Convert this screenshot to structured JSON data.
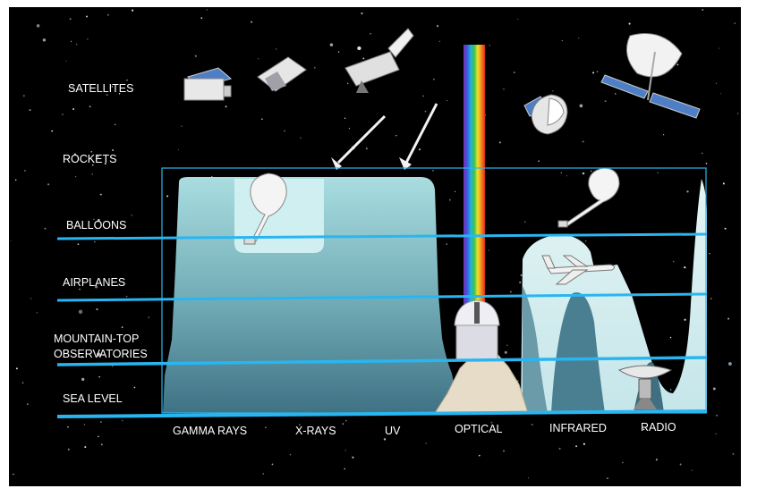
{
  "levels": [
    {
      "key": "satellites",
      "label": "SATELLITES"
    },
    {
      "key": "rockets",
      "label": "ROCKETS"
    },
    {
      "key": "balloons",
      "label": "BALLOONS"
    },
    {
      "key": "airplanes",
      "label": "AIRPLANES"
    },
    {
      "key": "mountain",
      "label_line1": "MOUNTAIN-TOP",
      "label_line2": "OBSERVATORIES"
    },
    {
      "key": "sea",
      "label": "SEA LEVEL"
    }
  ],
  "bands": [
    {
      "key": "gamma",
      "label": "GAMMA RAYS"
    },
    {
      "key": "xray",
      "label": "X-RAYS"
    },
    {
      "key": "uv",
      "label": "UV"
    },
    {
      "key": "optical",
      "label": "OPTICAL"
    },
    {
      "key": "infrared",
      "label": "INFRARED"
    },
    {
      "key": "radio",
      "label": "RADIO"
    }
  ],
  "colors": {
    "sky": "#000000",
    "altitude_line": "#29b6f0",
    "absorption_fill": "#9fd6dc",
    "upper_fill": "#d6eef0",
    "mountain": "#e6dcc8",
    "dome": "#e8e8ee"
  },
  "icons": [
    "satellite-icon",
    "rocket-icon",
    "balloon-icon",
    "airplane-icon",
    "telescope-dome-icon",
    "radio-dish-icon",
    "rainbow-spectrum-icon"
  ]
}
